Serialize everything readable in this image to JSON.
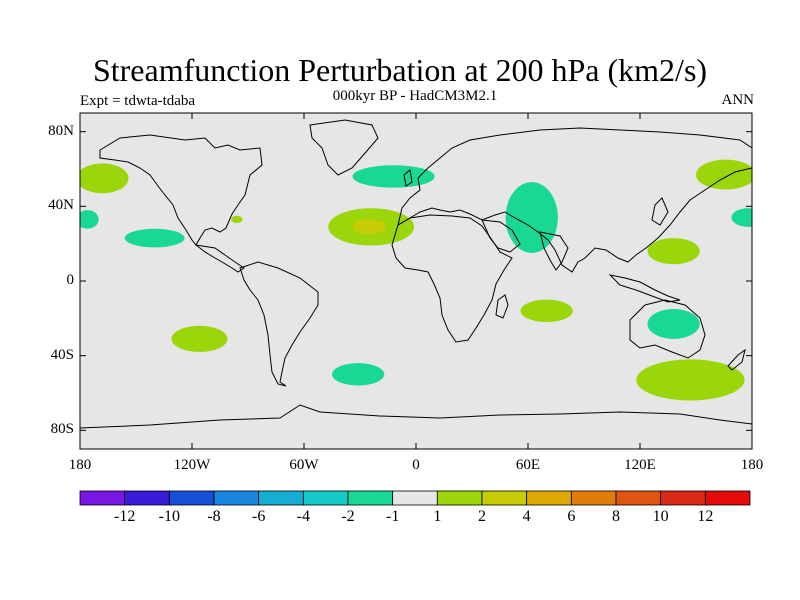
{
  "title": "Streamfunction Perturbation at 200 hPa (km2/s)",
  "experiment": "Expt = tdwta-tdaba",
  "subtitle": "000kyr BP - HadCM3M2.1",
  "period": "ANN",
  "map": {
    "lon_range": [
      -180,
      180
    ],
    "lat_range": [
      -90,
      90
    ],
    "background_color": "#e6e6e6",
    "lon_ticks": [
      {
        "value": -180,
        "label": "180"
      },
      {
        "value": -120,
        "label": "120W"
      },
      {
        "value": -60,
        "label": "60W"
      },
      {
        "value": 0,
        "label": "0"
      },
      {
        "value": 60,
        "label": "60E"
      },
      {
        "value": 120,
        "label": "120E"
      },
      {
        "value": 180,
        "label": "180"
      }
    ],
    "lat_ticks": [
      {
        "value": 80,
        "label": "80N"
      },
      {
        "value": 40,
        "label": "40N"
      },
      {
        "value": 0,
        "label": "0"
      },
      {
        "value": -40,
        "label": "40S"
      },
      {
        "value": -80,
        "label": "80S"
      }
    ]
  },
  "anomaly_regions": [
    {
      "name": "north-pacific-west",
      "lon": -168,
      "lat": 55,
      "rlon": 14,
      "rlat": 8,
      "color": "#9bd60a"
    },
    {
      "name": "north-pacific-east",
      "lon": 166,
      "lat": 57,
      "rlon": 16,
      "rlat": 8,
      "color": "#9bd60a"
    },
    {
      "name": "north-atlantic",
      "lon": -12,
      "lat": 56,
      "rlon": 22,
      "rlat": 6,
      "color": "#19d894"
    },
    {
      "name": "subtropical-atlantic",
      "lon": -24,
      "lat": 29,
      "rlon": 23,
      "rlat": 10,
      "color": "#9bd60a"
    },
    {
      "name": "subtropical-atlantic-core",
      "lon": -25,
      "lat": 29,
      "rlon": 9,
      "rlat": 4,
      "color": "#c7cc07"
    },
    {
      "name": "south-asia",
      "lon": 62,
      "lat": 34,
      "rlon": 14,
      "rlat": 19,
      "color": "#19d894"
    },
    {
      "name": "east-pacific-tropics",
      "lon": -140,
      "lat": 23,
      "rlon": 16,
      "rlat": 5,
      "color": "#19d894"
    },
    {
      "name": "central-pacific-west",
      "lon": -176,
      "lat": 33,
      "rlon": 6,
      "rlat": 5,
      "color": "#19d894"
    },
    {
      "name": "central-pacific-east",
      "lon": 178,
      "lat": 34,
      "rlon": 9,
      "rlat": 5,
      "color": "#19d894"
    },
    {
      "name": "west-pacific-tropics",
      "lon": 138,
      "lat": 16,
      "rlon": 14,
      "rlat": 7,
      "color": "#9bd60a"
    },
    {
      "name": "indian-ocean",
      "lon": 70,
      "lat": -16,
      "rlon": 14,
      "rlat": 6,
      "color": "#9bd60a"
    },
    {
      "name": "australia",
      "lon": 138,
      "lat": -23,
      "rlon": 14,
      "rlat": 8,
      "color": "#19d894"
    },
    {
      "name": "south-pacific",
      "lon": -116,
      "lat": -31,
      "rlon": 15,
      "rlat": 7,
      "color": "#9bd60a"
    },
    {
      "name": "south-atlantic",
      "lon": -31,
      "lat": -50,
      "rlon": 14,
      "rlat": 6,
      "color": "#19d894"
    },
    {
      "name": "southern-ocean",
      "lon": 147,
      "lat": -53,
      "rlon": 29,
      "rlat": 11,
      "color": "#9bd60a"
    },
    {
      "name": "north-america-small",
      "lon": -96,
      "lat": 33,
      "rlon": 3,
      "rlat": 2,
      "color": "#9bd60a"
    }
  ],
  "colorbar": {
    "colors": [
      "#7a17e5",
      "#3a1bd8",
      "#1650d6",
      "#1987e0",
      "#15aed3",
      "#16cac7",
      "#19d894",
      "#e6e6e6",
      "#9bd60a",
      "#c7cc07",
      "#dea900",
      "#e07d06",
      "#e05412",
      "#dc2a19",
      "#e40a0a"
    ],
    "labels": [
      "-12",
      "-10",
      "-8",
      "-6",
      "-4",
      "-2",
      "-1",
      "1",
      "2",
      "4",
      "6",
      "8",
      "10",
      "12"
    ]
  }
}
